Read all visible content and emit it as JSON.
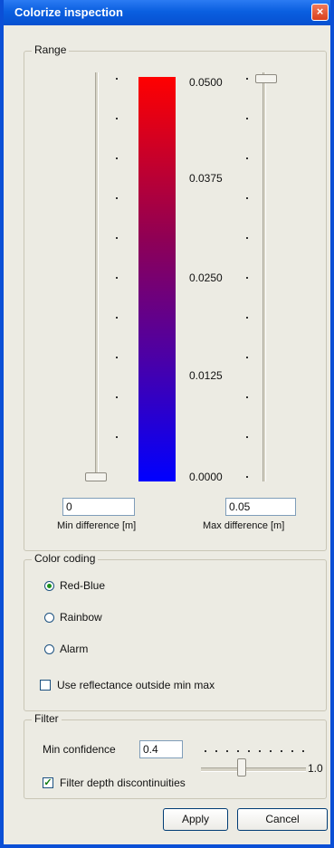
{
  "window": {
    "title": "Colorize inspection",
    "close_glyph": "×"
  },
  "range": {
    "group_title": "Range",
    "scale_labels": [
      "0.0500",
      "0.0375",
      "0.0250",
      "0.0125",
      "0.0000"
    ],
    "min_value": "0",
    "max_value": "0.05",
    "min_label": "Min difference [m]",
    "max_label": "Max difference [m]"
  },
  "color_coding": {
    "group_title": "Color coding",
    "options": [
      {
        "label": "Red-Blue",
        "selected": true
      },
      {
        "label": "Rainbow",
        "selected": false
      },
      {
        "label": "Alarm",
        "selected": false
      }
    ],
    "reflectance_checkbox": {
      "label": "Use reflectance outside min max",
      "checked": false
    }
  },
  "filter": {
    "group_title": "Filter",
    "min_confidence_label": "Min confidence",
    "min_confidence_value": "0.4",
    "slider_max_label": "1.0",
    "depth_checkbox": {
      "label": "Filter depth discontinuities",
      "checked": true,
      "mark": "✓"
    }
  },
  "buttons": {
    "apply": "Apply",
    "cancel": "Cancel"
  },
  "colors": {
    "titlebar": "#0a5fe0",
    "gradient_top": "#ff0000",
    "gradient_bottom": "#0000ff",
    "dialog_bg": "#ecebe3"
  }
}
